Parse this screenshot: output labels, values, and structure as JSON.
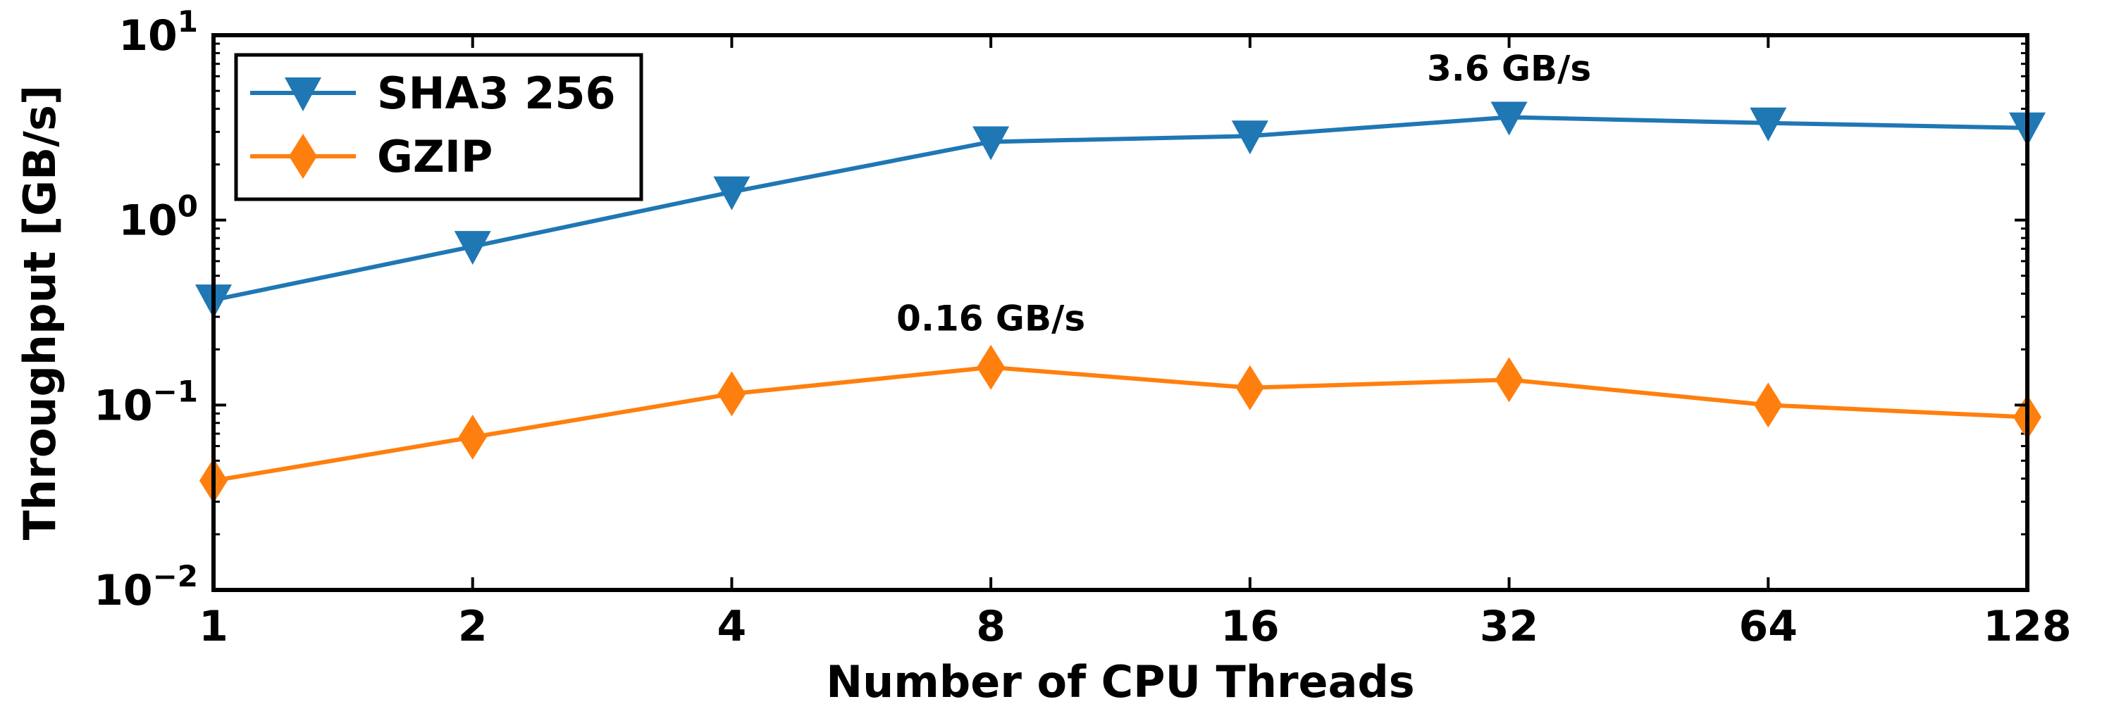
{
  "chart_data": {
    "type": "line",
    "x": [
      1,
      2,
      4,
      8,
      16,
      32,
      64,
      128
    ],
    "x_tick_labels": [
      "1",
      "2",
      "4",
      "8",
      "16",
      "32",
      "64",
      "128"
    ],
    "x_scale": "log2",
    "y_scale": "log10",
    "ylim": [
      0.01,
      10
    ],
    "y_tick_labels": [
      {
        "value": 10,
        "base": "10",
        "exp": "1"
      },
      {
        "value": 1,
        "base": "10",
        "exp": "0"
      },
      {
        "value": 0.1,
        "base": "10",
        "exp": "−1"
      },
      {
        "value": 0.01,
        "base": "10",
        "exp": "−2"
      }
    ],
    "xlabel": "Number of CPU Threads",
    "ylabel": "Throughput [GB/s]",
    "grid": false,
    "legend_position": "upper-left",
    "series": [
      {
        "name": "SHA3 256",
        "color": "#1f77b4",
        "marker": "triangle-down",
        "values": [
          0.37,
          0.72,
          1.42,
          2.65,
          2.85,
          3.6,
          3.35,
          3.15
        ]
      },
      {
        "name": "GZIP",
        "color": "#ff7f0e",
        "marker": "diamond",
        "values": [
          0.039,
          0.067,
          0.115,
          0.16,
          0.124,
          0.137,
          0.1,
          0.086
        ]
      }
    ],
    "annotations": [
      {
        "text": "3.6 GB/s",
        "series": 0,
        "x": 32
      },
      {
        "text": "0.16 GB/s",
        "series": 1,
        "x": 8
      }
    ]
  }
}
